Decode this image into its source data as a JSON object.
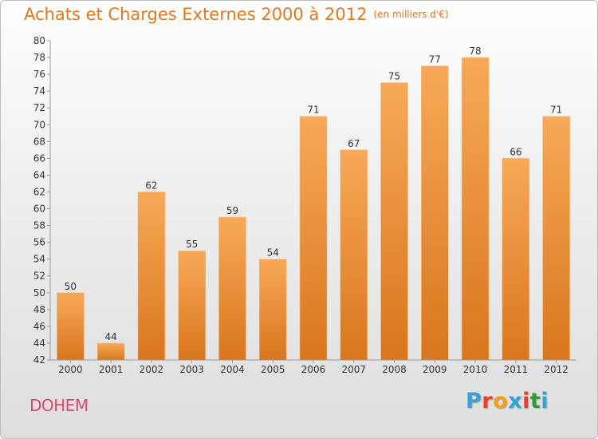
{
  "header": {
    "title": "Achats et Charges Externes 2000 à 2012",
    "unit": "(en milliers d'€)"
  },
  "footer": {
    "commune": "DOHEM",
    "logo": "Proxiti",
    "logo_colors": [
      "#3aa0d8",
      "#e8402a",
      "#f0a020",
      "#3aa0d8",
      "#e8402a",
      "#2e9a3a",
      "#3aa0d8"
    ]
  },
  "colors": {
    "bar_light": "#f7a958",
    "bar_dark": "#d9761e",
    "title": "#e07820",
    "commune": "#d84a6a"
  },
  "chart_data": {
    "type": "bar",
    "title": "Achats et Charges Externes 2000 à 2012",
    "xlabel": "",
    "ylabel": "",
    "categories": [
      "2000",
      "2001",
      "2002",
      "2003",
      "2004",
      "2005",
      "2006",
      "2007",
      "2008",
      "2009",
      "2010",
      "2011",
      "2012"
    ],
    "values": [
      50,
      44,
      62,
      55,
      59,
      54,
      71,
      67,
      75,
      77,
      78,
      66,
      71
    ],
    "ylim": [
      42,
      80
    ],
    "yticks": [
      42,
      44,
      46,
      48,
      50,
      52,
      54,
      56,
      58,
      60,
      62,
      64,
      66,
      68,
      70,
      72,
      74,
      76,
      78,
      80
    ],
    "grid": false,
    "data_labels": true
  }
}
